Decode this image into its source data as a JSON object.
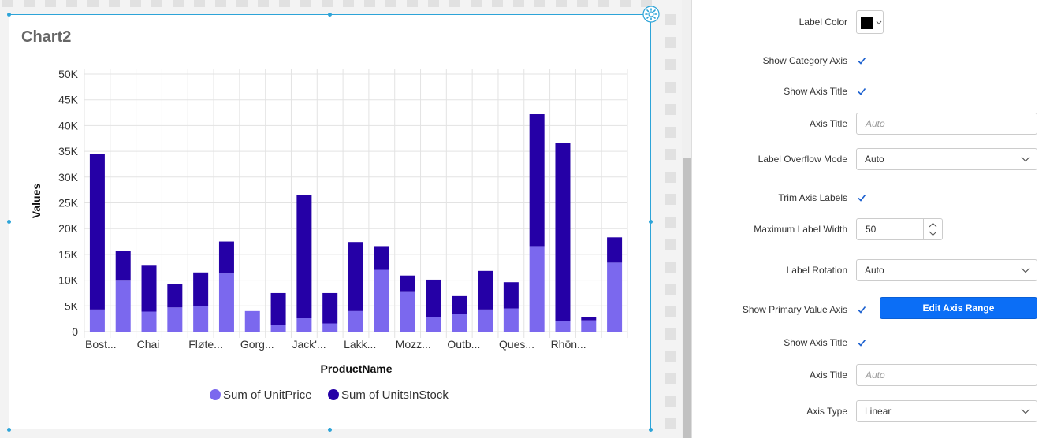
{
  "canvas": {
    "chart": {
      "title": "Chart2"
    }
  },
  "chart_data": {
    "type": "bar",
    "stacked": true,
    "categories": [
      "Bost...",
      "",
      "Chai",
      "",
      "Fløte...",
      "",
      "Gorg...",
      "",
      "Jack'...",
      "",
      "Lakk...",
      "",
      "Mozz...",
      "",
      "Outb...",
      "",
      "Ques...",
      "",
      "Rhön...",
      "",
      ""
    ],
    "series": [
      {
        "name": "Sum of UnitPrice",
        "color": "#7b68ee",
        "values": [
          4300,
          9900,
          3900,
          4700,
          5000,
          11300,
          4000,
          1300,
          2600,
          1600,
          4000,
          12000,
          7700,
          2800,
          3400,
          4300,
          4500,
          16600,
          2100,
          2200,
          13400
        ]
      },
      {
        "name": "Sum of UnitsInStock",
        "color": "#2500a6",
        "values": [
          30200,
          5800,
          8900,
          4500,
          6500,
          6200,
          0,
          6200,
          24000,
          5900,
          13400,
          4600,
          3200,
          7300,
          3500,
          7500,
          5100,
          25600,
          34500,
          700,
          4900
        ]
      }
    ],
    "xlabel": "ProductName",
    "ylabel": "Values",
    "ylim": [
      0,
      50000
    ],
    "yticks": [
      "50K",
      "45K",
      "40K",
      "35K",
      "30K",
      "25K",
      "20K",
      "15K",
      "10K",
      "5K",
      "0"
    ],
    "grid": true,
    "legend_position": "bottom"
  },
  "panel": {
    "rows": [
      {
        "label": "Label Color",
        "control": "color",
        "value": "#000000"
      },
      {
        "label": "Show Category Axis",
        "control": "checkbox",
        "checked": true
      },
      {
        "label": "Show Axis Title",
        "control": "checkbox",
        "checked": true
      },
      {
        "label": "Axis Title",
        "control": "text",
        "placeholder": "Auto"
      },
      {
        "label": "Label Overflow Mode",
        "control": "select",
        "value": "Auto"
      },
      {
        "label": "Trim Axis Labels",
        "control": "checkbox",
        "checked": true
      },
      {
        "label": "Maximum Label Width",
        "control": "number",
        "value": "50"
      },
      {
        "label": "Label Rotation",
        "control": "select",
        "value": "Auto"
      },
      {
        "label": "Show Primary Value Axis",
        "control": "checkbox",
        "checked": true,
        "button": "Edit Axis Range"
      },
      {
        "label": "Show Axis Title",
        "control": "checkbox",
        "checked": true
      },
      {
        "label": "Axis Title",
        "control": "text",
        "placeholder": "Auto"
      },
      {
        "label": "Axis Type",
        "control": "select",
        "value": "Linear"
      }
    ]
  },
  "colors": {
    "accent": "#0b6ef6",
    "selection": "#2da4d8",
    "check": "#1e62d0"
  }
}
